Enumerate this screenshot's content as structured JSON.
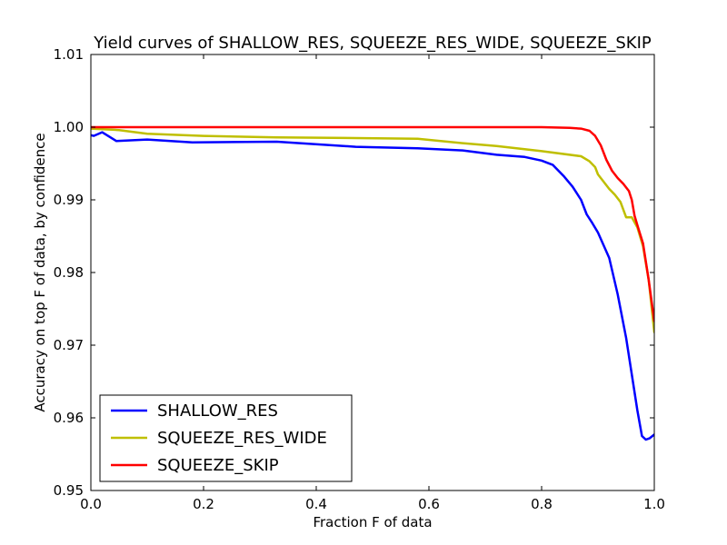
{
  "chart_data": {
    "type": "line",
    "title": "Yield curves of SHALLOW_RES, SQUEEZE_RES_WIDE, SQUEEZE_SKIP",
    "xlabel": "Fraction F of data",
    "ylabel": "Accuracy on top F of data, by confidence",
    "xlim": [
      0.0,
      1.0
    ],
    "ylim": [
      0.95,
      1.01
    ],
    "xticks": [
      0.0,
      0.2,
      0.4,
      0.6,
      0.8,
      1.0
    ],
    "xtick_labels": [
      "0.0",
      "0.2",
      "0.4",
      "0.6",
      "0.8",
      "1.0"
    ],
    "yticks": [
      0.95,
      0.96,
      0.97,
      0.98,
      0.99,
      1.0,
      1.01
    ],
    "ytick_labels": [
      "0.95",
      "0.96",
      "0.97",
      "0.98",
      "0.99",
      "1.00",
      "1.01"
    ],
    "grid": false,
    "legend_position": "lower-left",
    "series": [
      {
        "name": "SHALLOW_RES",
        "color": "#0000ff",
        "x": [
          0.0,
          0.005,
          0.02,
          0.045,
          0.1,
          0.18,
          0.33,
          0.47,
          0.58,
          0.66,
          0.72,
          0.77,
          0.8,
          0.82,
          0.84,
          0.855,
          0.87,
          0.88,
          0.89,
          0.9,
          0.92,
          0.935,
          0.95,
          0.96,
          0.97,
          0.978,
          0.985,
          0.992,
          1.0
        ],
        "y": [
          0.9989,
          0.9988,
          0.9993,
          0.9981,
          0.9983,
          0.9979,
          0.998,
          0.9973,
          0.9971,
          0.9968,
          0.9962,
          0.9959,
          0.9954,
          0.9948,
          0.9932,
          0.9918,
          0.99,
          0.988,
          0.9868,
          0.9855,
          0.982,
          0.977,
          0.971,
          0.966,
          0.961,
          0.9575,
          0.957,
          0.9572,
          0.9577
        ]
      },
      {
        "name": "SQUEEZE_RES_WIDE",
        "color": "#bfbf00",
        "x": [
          0.0,
          0.05,
          0.1,
          0.2,
          0.33,
          0.47,
          0.58,
          0.66,
          0.72,
          0.8,
          0.87,
          0.885,
          0.895,
          0.9,
          0.91,
          0.92,
          0.93,
          0.94,
          0.95,
          0.96,
          0.97,
          0.98,
          0.99,
          1.0
        ],
        "y": [
          0.9998,
          0.9996,
          0.9991,
          0.9988,
          0.9986,
          0.9985,
          0.9984,
          0.9978,
          0.9974,
          0.9967,
          0.996,
          0.9953,
          0.9945,
          0.9935,
          0.9925,
          0.9915,
          0.9907,
          0.9897,
          0.9876,
          0.9876,
          0.9862,
          0.9836,
          0.979,
          0.9718
        ]
      },
      {
        "name": "SQUEEZE_SKIP",
        "color": "#ff0000",
        "x": [
          0.0,
          0.2,
          0.4,
          0.6,
          0.8,
          0.85,
          0.87,
          0.885,
          0.895,
          0.905,
          0.915,
          0.925,
          0.935,
          0.945,
          0.955,
          0.96,
          0.965,
          0.97,
          0.98,
          0.99,
          1.0
        ],
        "y": [
          1.0,
          1.0,
          1.0,
          1.0,
          1.0,
          0.9999,
          0.9998,
          0.9995,
          0.9988,
          0.9975,
          0.9955,
          0.994,
          0.993,
          0.9922,
          0.9912,
          0.99,
          0.9878,
          0.9865,
          0.984,
          0.979,
          0.9733
        ]
      }
    ]
  }
}
